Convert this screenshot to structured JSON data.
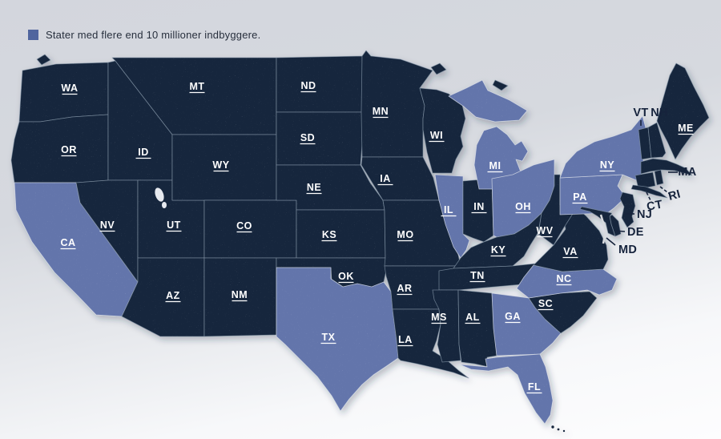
{
  "legend": {
    "label": "Stater med flere end 10 millioner indbyggere.",
    "swatch_color": "#50659e"
  },
  "map": {
    "colors": {
      "highlighted_state": "#6375ab",
      "default_state": "#14263d",
      "state_label": "#ffffff",
      "callout_label": "#16233c",
      "background_top": "#d3d6dd",
      "background_bottom": "#fdfdfe"
    },
    "states": [
      {
        "abbr": "WA",
        "highlighted": false,
        "label_style": "on-state"
      },
      {
        "abbr": "OR",
        "highlighted": false,
        "label_style": "on-state"
      },
      {
        "abbr": "CA",
        "highlighted": true,
        "label_style": "on-state"
      },
      {
        "abbr": "ID",
        "highlighted": false,
        "label_style": "on-state"
      },
      {
        "abbr": "NV",
        "highlighted": false,
        "label_style": "on-state"
      },
      {
        "abbr": "UT",
        "highlighted": false,
        "label_style": "on-state"
      },
      {
        "abbr": "AZ",
        "highlighted": false,
        "label_style": "on-state"
      },
      {
        "abbr": "MT",
        "highlighted": false,
        "label_style": "on-state"
      },
      {
        "abbr": "WY",
        "highlighted": false,
        "label_style": "on-state"
      },
      {
        "abbr": "CO",
        "highlighted": false,
        "label_style": "on-state"
      },
      {
        "abbr": "NM",
        "highlighted": false,
        "label_style": "on-state"
      },
      {
        "abbr": "ND",
        "highlighted": false,
        "label_style": "on-state"
      },
      {
        "abbr": "SD",
        "highlighted": false,
        "label_style": "on-state"
      },
      {
        "abbr": "NE",
        "highlighted": false,
        "label_style": "on-state"
      },
      {
        "abbr": "KS",
        "highlighted": false,
        "label_style": "on-state"
      },
      {
        "abbr": "OK",
        "highlighted": false,
        "label_style": "on-state"
      },
      {
        "abbr": "TX",
        "highlighted": true,
        "label_style": "on-state"
      },
      {
        "abbr": "MN",
        "highlighted": false,
        "label_style": "on-state"
      },
      {
        "abbr": "IA",
        "highlighted": false,
        "label_style": "on-state"
      },
      {
        "abbr": "MO",
        "highlighted": false,
        "label_style": "on-state"
      },
      {
        "abbr": "AR",
        "highlighted": false,
        "label_style": "on-state"
      },
      {
        "abbr": "LA",
        "highlighted": false,
        "label_style": "on-state"
      },
      {
        "abbr": "WI",
        "highlighted": false,
        "label_style": "on-state"
      },
      {
        "abbr": "IL",
        "highlighted": true,
        "label_style": "on-state"
      },
      {
        "abbr": "IN",
        "highlighted": false,
        "label_style": "on-state"
      },
      {
        "abbr": "MI",
        "highlighted": true,
        "label_style": "on-state"
      },
      {
        "abbr": "OH",
        "highlighted": true,
        "label_style": "on-state"
      },
      {
        "abbr": "KY",
        "highlighted": false,
        "label_style": "on-state"
      },
      {
        "abbr": "TN",
        "highlighted": false,
        "label_style": "on-state"
      },
      {
        "abbr": "MS",
        "highlighted": false,
        "label_style": "on-state"
      },
      {
        "abbr": "AL",
        "highlighted": false,
        "label_style": "on-state"
      },
      {
        "abbr": "GA",
        "highlighted": true,
        "label_style": "on-state"
      },
      {
        "abbr": "SC",
        "highlighted": false,
        "label_style": "on-state"
      },
      {
        "abbr": "NC",
        "highlighted": true,
        "label_style": "on-state"
      },
      {
        "abbr": "VA",
        "highlighted": false,
        "label_style": "on-state"
      },
      {
        "abbr": "WV",
        "highlighted": false,
        "label_style": "on-state"
      },
      {
        "abbr": "PA",
        "highlighted": true,
        "label_style": "on-state"
      },
      {
        "abbr": "NY",
        "highlighted": true,
        "label_style": "on-state"
      },
      {
        "abbr": "ME",
        "highlighted": false,
        "label_style": "on-state"
      },
      {
        "abbr": "FL",
        "highlighted": true,
        "label_style": "on-state"
      },
      {
        "abbr": "VT",
        "highlighted": false,
        "label_style": "callout"
      },
      {
        "abbr": "NH",
        "highlighted": false,
        "label_style": "callout"
      },
      {
        "abbr": "MA",
        "highlighted": false,
        "label_style": "callout"
      },
      {
        "abbr": "RI",
        "highlighted": false,
        "label_style": "callout"
      },
      {
        "abbr": "CT",
        "highlighted": false,
        "label_style": "callout"
      },
      {
        "abbr": "NJ",
        "highlighted": false,
        "label_style": "callout"
      },
      {
        "abbr": "DE",
        "highlighted": false,
        "label_style": "callout"
      },
      {
        "abbr": "MD",
        "highlighted": false,
        "label_style": "callout"
      }
    ]
  }
}
